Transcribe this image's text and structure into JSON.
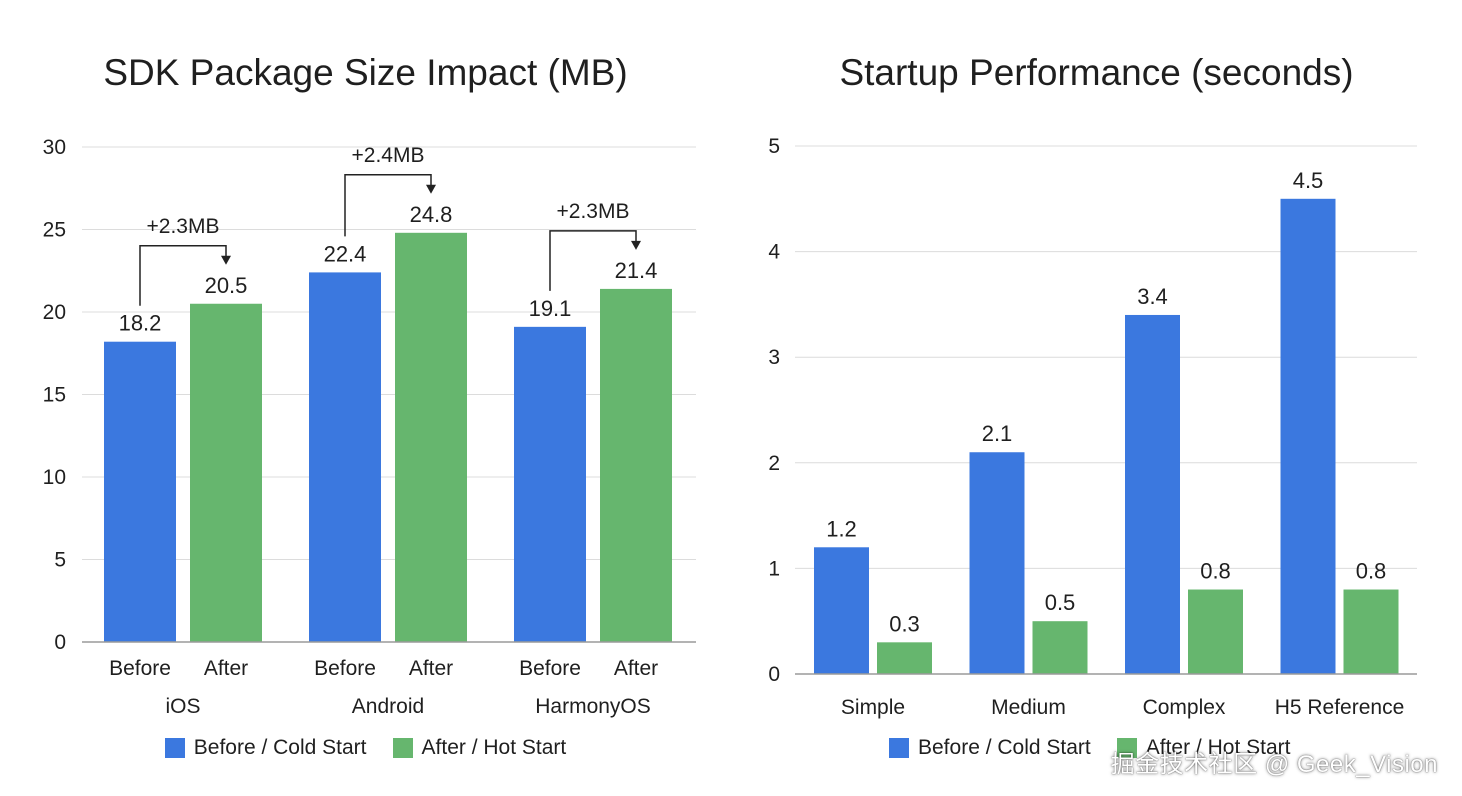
{
  "colors": {
    "before": "#3b78df",
    "after": "#66b66e",
    "grid": "#dcdcdc",
    "axis": "#9a9a9a",
    "text": "#1f1f1f"
  },
  "legend": {
    "before_label": "Before / Cold Start",
    "after_label": "After / Hot Start"
  },
  "watermark": "掘金技术社区 @ Geek_Vision",
  "chart_data": [
    {
      "type": "bar",
      "title": "SDK Package Size Impact (MB)",
      "categories": [
        "iOS",
        "Android",
        "HarmonyOS"
      ],
      "bar_labels": [
        "Before",
        "After"
      ],
      "series": [
        {
          "name": "Before / Cold Start",
          "values": [
            18.2,
            22.4,
            19.1
          ]
        },
        {
          "name": "After / Hot Start",
          "values": [
            20.5,
            24.8,
            21.4
          ]
        }
      ],
      "annotations": [
        "+2.3MB",
        "+2.4MB",
        "+2.3MB"
      ],
      "ylim": [
        0,
        30
      ],
      "yticks": [
        0,
        5,
        10,
        15,
        20,
        25,
        30
      ],
      "xlabel": "",
      "ylabel": "",
      "grid": true,
      "legend": "bottom"
    },
    {
      "type": "bar",
      "title": "Startup Performance (seconds)",
      "categories": [
        "Simple",
        "Medium",
        "Complex",
        "H5 Reference"
      ],
      "series": [
        {
          "name": "Before / Cold Start",
          "values": [
            1.2,
            2.1,
            3.4,
            4.5
          ]
        },
        {
          "name": "After / Hot Start",
          "values": [
            0.3,
            0.5,
            0.8,
            0.8
          ]
        }
      ],
      "ylim": [
        0,
        5
      ],
      "yticks": [
        0,
        1,
        2,
        3,
        4,
        5
      ],
      "xlabel": "",
      "ylabel": "",
      "grid": true,
      "legend": "bottom"
    }
  ]
}
